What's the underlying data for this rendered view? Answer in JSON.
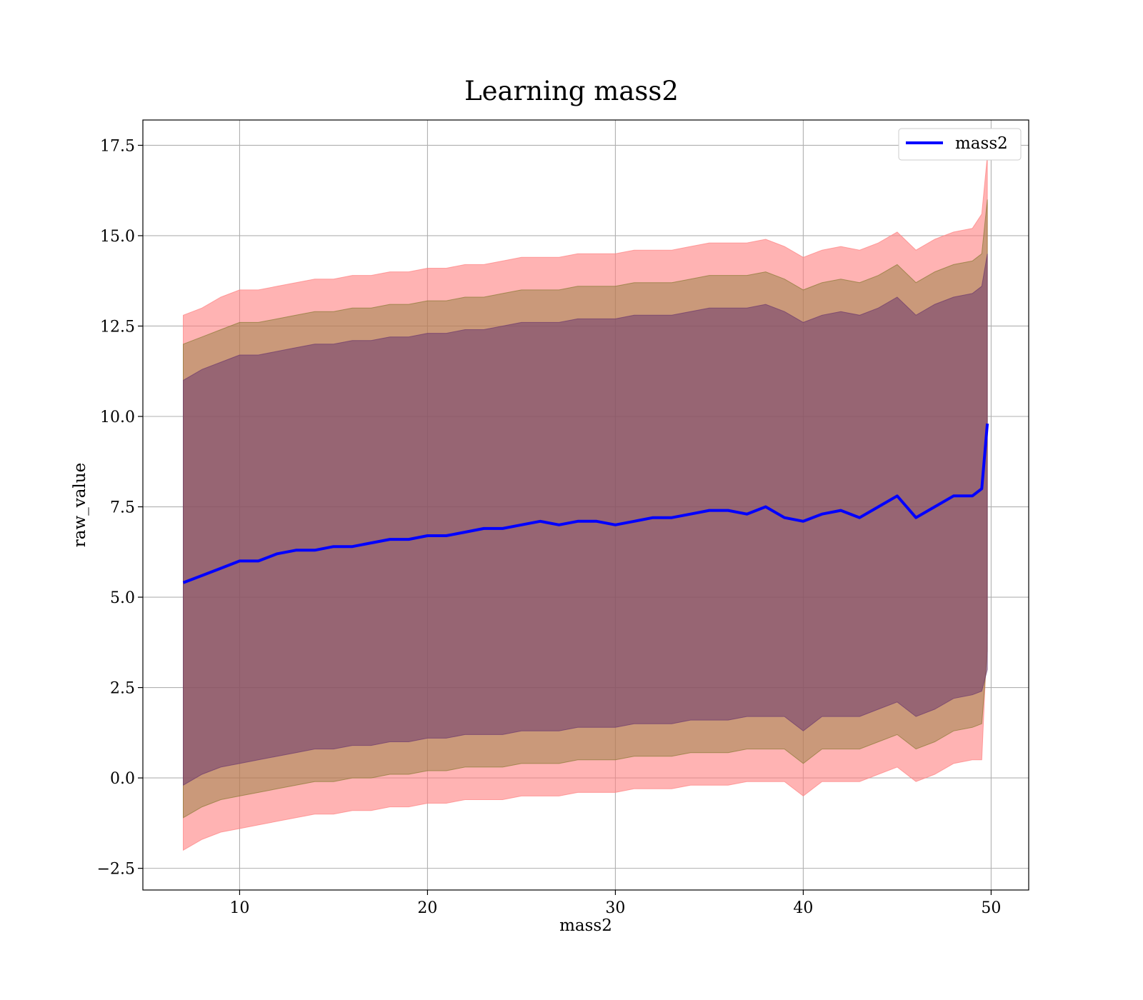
{
  "chart_data": {
    "type": "line",
    "title": "Learning mass2",
    "xlabel": "mass2",
    "ylabel": "raw_value",
    "xlim": [
      4.85,
      52
    ],
    "ylim": [
      -3.1,
      18.2
    ],
    "x_ticks": [
      10,
      20,
      30,
      40,
      50
    ],
    "x_tick_labels": [
      "10",
      "20",
      "30",
      "40",
      "50"
    ],
    "y_ticks": [
      -2.5,
      0.0,
      2.5,
      5.0,
      7.5,
      10.0,
      12.5,
      15.0,
      17.5
    ],
    "y_tick_labels": [
      "−2.5",
      "0.0",
      "2.5",
      "5.0",
      "7.5",
      "10.0",
      "12.5",
      "15.0",
      "17.5"
    ],
    "grid": true,
    "legend": {
      "position": "top-right",
      "entries": [
        "mass2"
      ]
    },
    "colors": {
      "line": "#0000ff",
      "band_3sigma": "#ff8080",
      "band_2sigma": "#8a7a35",
      "band_1sigma": "#6e3a6e"
    },
    "x": [
      7.0,
      8.0,
      9.0,
      10.0,
      11.0,
      12.0,
      13.0,
      14.0,
      15.0,
      16.0,
      17.0,
      18.0,
      19.0,
      20.0,
      21.0,
      22.0,
      23.0,
      24.0,
      25.0,
      26.0,
      27.0,
      28.0,
      29.0,
      30.0,
      31.0,
      32.0,
      33.0,
      34.0,
      35.0,
      36.0,
      37.0,
      38.0,
      39.0,
      40.0,
      41.0,
      42.0,
      43.0,
      44.0,
      45.0,
      46.0,
      47.0,
      48.0,
      49.0,
      49.5,
      49.8
    ],
    "series": [
      {
        "name": "mass2",
        "values": [
          5.4,
          5.6,
          5.8,
          6.0,
          6.0,
          6.2,
          6.3,
          6.3,
          6.4,
          6.4,
          6.5,
          6.6,
          6.6,
          6.7,
          6.7,
          6.8,
          6.9,
          6.9,
          7.0,
          7.1,
          7.0,
          7.1,
          7.1,
          7.0,
          7.1,
          7.2,
          7.2,
          7.3,
          7.4,
          7.4,
          7.3,
          7.5,
          7.2,
          7.1,
          7.3,
          7.4,
          7.2,
          7.5,
          7.8,
          7.2,
          7.5,
          7.8,
          7.8,
          8.0,
          9.8
        ]
      }
    ],
    "bands": [
      {
        "lower": [
          -2.0,
          -1.7,
          -1.5,
          -1.4,
          -1.3,
          -1.2,
          -1.1,
          -1.0,
          -1.0,
          -0.9,
          -0.9,
          -0.8,
          -0.8,
          -0.7,
          -0.7,
          -0.6,
          -0.6,
          -0.6,
          -0.5,
          -0.5,
          -0.5,
          -0.4,
          -0.4,
          -0.4,
          -0.3,
          -0.3,
          -0.3,
          -0.2,
          -0.2,
          -0.2,
          -0.1,
          -0.1,
          -0.1,
          -0.5,
          -0.1,
          -0.1,
          -0.1,
          0.1,
          0.3,
          -0.1,
          0.1,
          0.4,
          0.5,
          0.5,
          4.0
        ],
        "upper": [
          12.8,
          13.0,
          13.3,
          13.5,
          13.5,
          13.6,
          13.7,
          13.8,
          13.8,
          13.9,
          13.9,
          14.0,
          14.0,
          14.1,
          14.1,
          14.2,
          14.2,
          14.3,
          14.4,
          14.4,
          14.4,
          14.5,
          14.5,
          14.5,
          14.6,
          14.6,
          14.6,
          14.7,
          14.8,
          14.8,
          14.8,
          14.9,
          14.7,
          14.4,
          14.6,
          14.7,
          14.6,
          14.8,
          15.1,
          14.6,
          14.9,
          15.1,
          15.2,
          15.6,
          17.2
        ]
      },
      {
        "lower": [
          -1.1,
          -0.8,
          -0.6,
          -0.5,
          -0.4,
          -0.3,
          -0.2,
          -0.1,
          -0.1,
          0.0,
          0.0,
          0.1,
          0.1,
          0.2,
          0.2,
          0.3,
          0.3,
          0.3,
          0.4,
          0.4,
          0.4,
          0.5,
          0.5,
          0.5,
          0.6,
          0.6,
          0.6,
          0.7,
          0.7,
          0.7,
          0.8,
          0.8,
          0.8,
          0.4,
          0.8,
          0.8,
          0.8,
          1.0,
          1.2,
          0.8,
          1.0,
          1.3,
          1.4,
          1.5,
          3.5
        ],
        "upper": [
          12.0,
          12.2,
          12.4,
          12.6,
          12.6,
          12.7,
          12.8,
          12.9,
          12.9,
          13.0,
          13.0,
          13.1,
          13.1,
          13.2,
          13.2,
          13.3,
          13.3,
          13.4,
          13.5,
          13.5,
          13.5,
          13.6,
          13.6,
          13.6,
          13.7,
          13.7,
          13.7,
          13.8,
          13.9,
          13.9,
          13.9,
          14.0,
          13.8,
          13.5,
          13.7,
          13.8,
          13.7,
          13.9,
          14.2,
          13.7,
          14.0,
          14.2,
          14.3,
          14.5,
          16.0
        ]
      },
      {
        "lower": [
          -0.2,
          0.1,
          0.3,
          0.4,
          0.5,
          0.6,
          0.7,
          0.8,
          0.8,
          0.9,
          0.9,
          1.0,
          1.0,
          1.1,
          1.1,
          1.2,
          1.2,
          1.2,
          1.3,
          1.3,
          1.3,
          1.4,
          1.4,
          1.4,
          1.5,
          1.5,
          1.5,
          1.6,
          1.6,
          1.6,
          1.7,
          1.7,
          1.7,
          1.3,
          1.7,
          1.7,
          1.7,
          1.9,
          2.1,
          1.7,
          1.9,
          2.2,
          2.3,
          2.4,
          3.0
        ],
        "upper": [
          11.0,
          11.3,
          11.5,
          11.7,
          11.7,
          11.8,
          11.9,
          12.0,
          12.0,
          12.1,
          12.1,
          12.2,
          12.2,
          12.3,
          12.3,
          12.4,
          12.4,
          12.5,
          12.6,
          12.6,
          12.6,
          12.7,
          12.7,
          12.7,
          12.8,
          12.8,
          12.8,
          12.9,
          13.0,
          13.0,
          13.0,
          13.1,
          12.9,
          12.6,
          12.8,
          12.9,
          12.8,
          13.0,
          13.3,
          12.8,
          13.1,
          13.3,
          13.4,
          13.6,
          14.5
        ]
      }
    ]
  }
}
